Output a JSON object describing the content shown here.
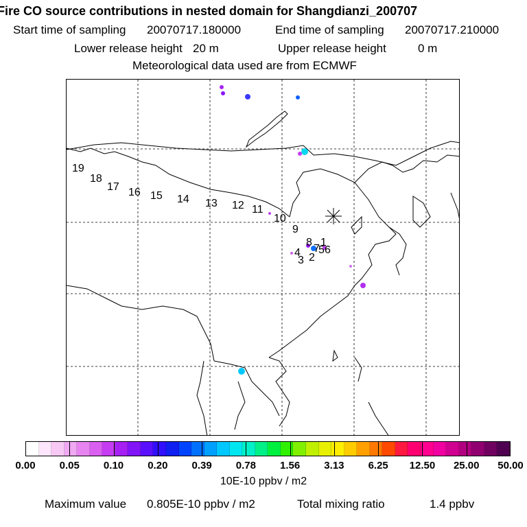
{
  "header": {
    "title": "Fire CO source contributions in nested domain for Shangdianzi_200707",
    "start_label": "Start time of sampling",
    "start_value": "20070717.180000",
    "end_label": "End time of sampling",
    "end_value": "20070717.210000",
    "lower_label": "Lower release height",
    "lower_value": "20 m",
    "upper_label": "Upper release height",
    "upper_value": "0 m",
    "met_line": "Meteorological data used are from ECMWF"
  },
  "map": {
    "trajectory_labels": [
      "1",
      "2",
      "3",
      "4",
      "5",
      "6",
      "7",
      "8",
      "9",
      "10",
      "11",
      "12",
      "13",
      "14",
      "15",
      "16",
      "17",
      "18",
      "19"
    ],
    "receptor_marker": "asterisk-icon"
  },
  "colorbar": {
    "colors": [
      "#ffffff",
      "#fde6fb",
      "#f8c8f5",
      "#f0a8f2",
      "#e784f0",
      "#d95ff0",
      "#c63cf2",
      "#a620f4",
      "#8214f8",
      "#5a10fc",
      "#3010ff",
      "#1020f0",
      "#0044ff",
      "#0070ff",
      "#00a0ff",
      "#00c8ff",
      "#00e6f0",
      "#00f0c8",
      "#00f088",
      "#00f040",
      "#30f000",
      "#80f000",
      "#c0f000",
      "#e8f000",
      "#ffee00",
      "#ffcc00",
      "#ffa000",
      "#ff7800",
      "#ff4800",
      "#ff1840",
      "#ff0070",
      "#ff0090",
      "#f000a0",
      "#d00090",
      "#b00080",
      "#900070",
      "#700060",
      "#500050"
    ],
    "tick_labels": [
      "0.00",
      "0.05",
      "0.10",
      "0.20",
      "0.39",
      "0.78",
      "1.56",
      "3.13",
      "6.25",
      "12.50",
      "25.00",
      "50.00"
    ],
    "units": "10E-10 ppbv / m2"
  },
  "footer": {
    "max_label": "Maximum value",
    "max_value": "0.805E-10 ppbv / m2",
    "total_label": "Total mixing ratio",
    "total_value": "1.4 ppbv"
  }
}
